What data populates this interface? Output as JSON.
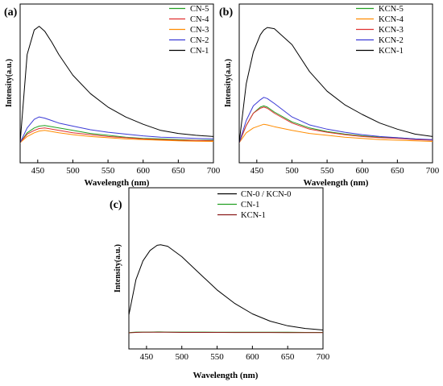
{
  "chart_data": [
    {
      "type": "line",
      "panel_label": "(a)",
      "xlabel": "Wavelength (nm)",
      "ylabel": "Intensity(a.u.)",
      "xlim": [
        425,
        700
      ],
      "ylim": [
        0,
        100
      ],
      "xticks": [
        450,
        500,
        550,
        600,
        650,
        700
      ],
      "legend_position": "top-right",
      "x": [
        425,
        435,
        445,
        452,
        460,
        470,
        480,
        500,
        525,
        550,
        575,
        600,
        625,
        650,
        675,
        700
      ],
      "series": [
        {
          "name": "CN-5",
          "color": "#22a022",
          "values": [
            0,
            8,
            12,
            13.5,
            14,
            13,
            12,
            10,
            7.5,
            6,
            4.5,
            3.5,
            3,
            2.5,
            2,
            2
          ]
        },
        {
          "name": "CN-4",
          "color": "#e03030",
          "values": [
            0,
            7,
            10,
            11.5,
            12,
            11,
            10,
            8,
            6.5,
            5,
            4,
            3,
            2.5,
            2,
            1.8,
            1.5
          ]
        },
        {
          "name": "CN-3",
          "color": "#ff8c00",
          "values": [
            0,
            5,
            8,
            9.5,
            10,
            9,
            8,
            6.5,
            5,
            4,
            3,
            2.5,
            2,
            1.5,
            1.2,
            1
          ]
        },
        {
          "name": "CN-2",
          "color": "#3b3bd6",
          "values": [
            0,
            12,
            19,
            21,
            20,
            18,
            16,
            13.5,
            10.5,
            8.5,
            7,
            5.5,
            4.5,
            4,
            3.5,
            3
          ]
        },
        {
          "name": "CN-1",
          "color": "#000000",
          "values": [
            0,
            72,
            92,
            95,
            91,
            82,
            72,
            55,
            40,
            29,
            21,
            15,
            10,
            7.5,
            6,
            5
          ]
        }
      ]
    },
    {
      "type": "line",
      "panel_label": "(b)",
      "xlabel": "Wavelength (nm)",
      "ylabel": "Intensity(a.u.)",
      "xlim": [
        425,
        700
      ],
      "ylim": [
        0,
        100
      ],
      "xticks": [
        450,
        500,
        550,
        600,
        650,
        700
      ],
      "legend_position": "top-right",
      "x": [
        425,
        435,
        445,
        455,
        460,
        465,
        475,
        500,
        525,
        550,
        575,
        600,
        625,
        650,
        675,
        700
      ],
      "series": [
        {
          "name": "KCN-5",
          "color": "#22a022",
          "values": [
            0,
            14,
            24,
            29,
            30,
            29,
            25,
            17,
            12,
            9,
            7,
            5.5,
            4.5,
            4,
            3,
            2
          ]
        },
        {
          "name": "KCN-4",
          "color": "#ff8c00",
          "values": [
            0,
            8,
            12,
            14,
            15,
            14.5,
            13,
            10,
            7.5,
            6,
            4.5,
            3.5,
            2.5,
            2,
            1.5,
            1
          ]
        },
        {
          "name": "KCN-3",
          "color": "#e03030",
          "values": [
            0,
            14,
            24,
            28,
            29,
            28,
            24,
            16,
            11,
            8.5,
            6.5,
            5,
            4,
            3.5,
            2.5,
            2
          ]
        },
        {
          "name": "KCN-2",
          "color": "#3b3bd6",
          "values": [
            0,
            18,
            30,
            35,
            37,
            36,
            32,
            21,
            14.5,
            11,
            8.5,
            6.5,
            5,
            4,
            3,
            2.5
          ]
        },
        {
          "name": "KCN-1",
          "color": "#000000",
          "values": [
            0,
            48,
            74,
            88,
            92,
            94,
            93,
            80,
            58,
            42,
            31,
            23,
            16,
            11,
            7,
            5
          ]
        }
      ]
    },
    {
      "type": "line",
      "panel_label": "(c)",
      "xlabel": "Wavelength (nm)",
      "ylabel": "Intensity(a.u.)",
      "xlim": [
        425,
        700
      ],
      "ylim": [
        0,
        100
      ],
      "xticks": [
        450,
        500,
        550,
        600,
        650,
        700
      ],
      "legend_position": "top-right",
      "x": [
        425,
        435,
        445,
        455,
        465,
        470,
        480,
        500,
        525,
        550,
        575,
        600,
        625,
        650,
        675,
        700
      ],
      "series": [
        {
          "name": "CN-0 / KCN-0",
          "color": "#000000",
          "values": [
            18,
            52,
            70,
            80,
            85,
            85.5,
            84,
            74,
            58,
            42,
            29,
            19,
            12,
            7.5,
            5,
            3.5
          ]
        },
        {
          "name": "CN-1",
          "color": "#22a022",
          "values": [
            1,
            1.5,
            1.5,
            1.5,
            1.6,
            1.6,
            1.5,
            1.5,
            1.5,
            1.4,
            1.4,
            1.3,
            1.3,
            1.3,
            1.2,
            1.2
          ]
        },
        {
          "name": "KCN-1",
          "color": "#8b1a1a",
          "values": [
            0.8,
            1.2,
            1.3,
            1.3,
            1.3,
            1.3,
            1.3,
            1.2,
            1.2,
            1.2,
            1.1,
            1.1,
            1.1,
            1.0,
            1.0,
            1.0
          ]
        }
      ]
    }
  ]
}
